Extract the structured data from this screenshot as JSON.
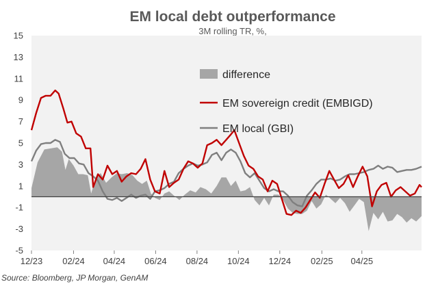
{
  "chart_data": {
    "type": "line",
    "title": "EM local debt outperformance",
    "subtitle": "3M rolling TR, %,",
    "source": "Source: Bloomberg, JP Morgan, GenAM",
    "ylim": [
      -5,
      15
    ],
    "yticks": [
      -5,
      -3,
      -1,
      1,
      3,
      5,
      7,
      9,
      11,
      13,
      15
    ],
    "xlim": [
      "2023-12-01",
      "2025-06-28"
    ],
    "xticks": [
      {
        "date": "2023-12-01",
        "label": "12/23"
      },
      {
        "date": "2024-02-01",
        "label": "02/24"
      },
      {
        "date": "2024-04-01",
        "label": "04/24"
      },
      {
        "date": "2024-06-01",
        "label": "06/24"
      },
      {
        "date": "2024-08-01",
        "label": "08/24"
      },
      {
        "date": "2024-10-01",
        "label": "10/24"
      },
      {
        "date": "2024-12-01",
        "label": "12/24"
      },
      {
        "date": "2025-02-01",
        "label": "02/25"
      },
      {
        "date": "2025-04-01",
        "label": "04/25"
      }
    ],
    "plot_background": "#f2f2f2",
    "grid": false,
    "legend_position": "center",
    "series": [
      {
        "name": "difference",
        "kind": "area",
        "color": "#a6a6a6",
        "points": [
          [
            "2023-12-01",
            0.8
          ],
          [
            "2023-12-10",
            3.2
          ],
          [
            "2023-12-20",
            4.4
          ],
          [
            "2023-12-30",
            4.5
          ],
          [
            "2024-01-08",
            4.6
          ],
          [
            "2024-01-15",
            4.2
          ],
          [
            "2024-01-20",
            2.5
          ],
          [
            "2024-01-25",
            3.5
          ],
          [
            "2024-02-01",
            2.9
          ],
          [
            "2024-02-08",
            2.1
          ],
          [
            "2024-02-15",
            2.1
          ],
          [
            "2024-02-22",
            2.0
          ],
          [
            "2024-02-27",
            0.3
          ],
          [
            "2024-03-05",
            1.8
          ],
          [
            "2024-03-12",
            2.2
          ],
          [
            "2024-03-20",
            1.3
          ],
          [
            "2024-03-28",
            1.8
          ],
          [
            "2024-04-05",
            2.2
          ],
          [
            "2024-04-12",
            2.1
          ],
          [
            "2024-04-20",
            2.2
          ],
          [
            "2024-04-28",
            2.0
          ],
          [
            "2024-05-05",
            1.5
          ],
          [
            "2024-05-12",
            1.2
          ],
          [
            "2024-05-19",
            1.5
          ],
          [
            "2024-05-25",
            0.3
          ],
          [
            "2024-05-31",
            -0.1
          ],
          [
            "2024-06-07",
            -0.3
          ],
          [
            "2024-06-14",
            0.3
          ],
          [
            "2024-06-21",
            0.5
          ],
          [
            "2024-06-28",
            0.1
          ],
          [
            "2024-07-06",
            -0.3
          ],
          [
            "2024-07-14",
            0.2
          ],
          [
            "2024-07-22",
            0.6
          ],
          [
            "2024-07-30",
            0.4
          ],
          [
            "2024-08-06",
            0.9
          ],
          [
            "2024-08-14",
            0.7
          ],
          [
            "2024-08-22",
            0.3
          ],
          [
            "2024-08-30",
            1.0
          ],
          [
            "2024-09-06",
            1.8
          ],
          [
            "2024-09-13",
            1.8
          ],
          [
            "2024-09-20",
            1.0
          ],
          [
            "2024-09-27",
            1.5
          ],
          [
            "2024-10-04",
            0.5
          ],
          [
            "2024-10-11",
            0.6
          ],
          [
            "2024-10-18",
            0.9
          ],
          [
            "2024-10-25",
            -0.3
          ],
          [
            "2024-11-01",
            -0.8
          ],
          [
            "2024-11-08",
            -0.1
          ],
          [
            "2024-11-15",
            -0.8
          ],
          [
            "2024-11-22",
            0.2
          ],
          [
            "2024-11-29",
            0.2
          ],
          [
            "2024-12-06",
            -0.3
          ],
          [
            "2024-12-13",
            -1.1
          ],
          [
            "2024-12-20",
            -1.5
          ],
          [
            "2024-12-27",
            -1.6
          ],
          [
            "2025-01-03",
            -1.6
          ],
          [
            "2025-01-10",
            -1.3
          ],
          [
            "2025-01-17",
            -0.4
          ],
          [
            "2025-01-24",
            -1.1
          ],
          [
            "2025-01-31",
            -0.7
          ],
          [
            "2025-02-07",
            0.2
          ],
          [
            "2025-02-14",
            -0.2
          ],
          [
            "2025-02-21",
            -0.6
          ],
          [
            "2025-02-28",
            -0.1
          ],
          [
            "2025-03-07",
            -0.6
          ],
          [
            "2025-03-14",
            -1.4
          ],
          [
            "2025-03-21",
            -0.8
          ],
          [
            "2025-03-28",
            -0.2
          ],
          [
            "2025-04-04",
            -0.5
          ],
          [
            "2025-04-11",
            -3.2
          ],
          [
            "2025-04-18",
            -1.5
          ],
          [
            "2025-04-25",
            -2.1
          ],
          [
            "2025-05-02",
            -1.4
          ],
          [
            "2025-05-09",
            -2.3
          ],
          [
            "2025-05-16",
            -2.2
          ],
          [
            "2025-05-23",
            -1.6
          ],
          [
            "2025-05-30",
            -1.9
          ],
          [
            "2025-06-06",
            -2.4
          ],
          [
            "2025-06-13",
            -2.0
          ],
          [
            "2025-06-20",
            -2.3
          ],
          [
            "2025-06-28",
            -1.8
          ]
        ]
      },
      {
        "name": "EM sovereign credit (EMBIGD)",
        "kind": "line",
        "color": "#c00000",
        "points": [
          [
            "2023-12-01",
            6.2
          ],
          [
            "2023-12-08",
            7.8
          ],
          [
            "2023-12-15",
            9.2
          ],
          [
            "2023-12-22",
            9.4
          ],
          [
            "2023-12-29",
            9.4
          ],
          [
            "2024-01-05",
            9.9
          ],
          [
            "2024-01-10",
            9.6
          ],
          [
            "2024-01-17",
            8.2
          ],
          [
            "2024-01-23",
            6.9
          ],
          [
            "2024-01-29",
            7.0
          ],
          [
            "2024-02-05",
            5.9
          ],
          [
            "2024-02-12",
            5.6
          ],
          [
            "2024-02-19",
            4.5
          ],
          [
            "2024-02-26",
            4.5
          ],
          [
            "2024-03-01",
            0.9
          ],
          [
            "2024-03-08",
            2.1
          ],
          [
            "2024-03-15",
            1.6
          ],
          [
            "2024-03-22",
            2.9
          ],
          [
            "2024-03-29",
            2.1
          ],
          [
            "2024-04-05",
            2.4
          ],
          [
            "2024-04-12",
            1.4
          ],
          [
            "2024-04-19",
            1.9
          ],
          [
            "2024-04-26",
            2.2
          ],
          [
            "2024-05-03",
            2.1
          ],
          [
            "2024-05-10",
            2.6
          ],
          [
            "2024-05-17",
            3.5
          ],
          [
            "2024-05-24",
            1.6
          ],
          [
            "2024-05-31",
            0.5
          ],
          [
            "2024-06-07",
            0.3
          ],
          [
            "2024-06-14",
            2.4
          ],
          [
            "2024-06-21",
            0.9
          ],
          [
            "2024-06-28",
            1.3
          ],
          [
            "2024-07-05",
            1.6
          ],
          [
            "2024-07-12",
            2.6
          ],
          [
            "2024-07-19",
            3.3
          ],
          [
            "2024-07-26",
            3.1
          ],
          [
            "2024-08-02",
            2.7
          ],
          [
            "2024-08-09",
            3.1
          ],
          [
            "2024-08-16",
            4.8
          ],
          [
            "2024-08-23",
            5.0
          ],
          [
            "2024-08-30",
            5.3
          ],
          [
            "2024-09-06",
            4.8
          ],
          [
            "2024-09-13",
            5.3
          ],
          [
            "2024-09-20",
            5.8
          ],
          [
            "2024-09-25",
            6.2
          ],
          [
            "2024-10-02",
            5.0
          ],
          [
            "2024-10-09",
            3.8
          ],
          [
            "2024-10-16",
            2.9
          ],
          [
            "2024-10-23",
            2.6
          ],
          [
            "2024-10-30",
            1.9
          ],
          [
            "2024-11-06",
            1.6
          ],
          [
            "2024-11-13",
            0.5
          ],
          [
            "2024-11-20",
            1.5
          ],
          [
            "2024-11-27",
            1.2
          ],
          [
            "2024-12-04",
            -0.2
          ],
          [
            "2024-12-11",
            -1.6
          ],
          [
            "2024-12-18",
            -1.7
          ],
          [
            "2024-12-25",
            -1.3
          ],
          [
            "2025-01-01",
            -1.5
          ],
          [
            "2025-01-08",
            -1.0
          ],
          [
            "2025-01-15",
            -0.3
          ],
          [
            "2025-01-22",
            0.4
          ],
          [
            "2025-01-29",
            -0.1
          ],
          [
            "2025-02-05",
            1.2
          ],
          [
            "2025-02-12",
            2.4
          ],
          [
            "2025-02-19",
            1.6
          ],
          [
            "2025-02-26",
            0.8
          ],
          [
            "2025-03-05",
            1.2
          ],
          [
            "2025-03-12",
            2.0
          ],
          [
            "2025-03-19",
            0.9
          ],
          [
            "2025-03-26",
            1.9
          ],
          [
            "2025-04-02",
            2.8
          ],
          [
            "2025-04-09",
            1.9
          ],
          [
            "2025-04-16",
            -0.9
          ],
          [
            "2025-04-23",
            0.5
          ],
          [
            "2025-04-30",
            1.1
          ],
          [
            "2025-05-07",
            1.3
          ],
          [
            "2025-05-14",
            0.0
          ],
          [
            "2025-05-21",
            0.6
          ],
          [
            "2025-05-28",
            0.9
          ],
          [
            "2025-06-04",
            0.5
          ],
          [
            "2025-06-11",
            0.1
          ],
          [
            "2025-06-18",
            0.3
          ],
          [
            "2025-06-25",
            1.1
          ],
          [
            "2025-06-28",
            0.9
          ]
        ]
      },
      {
        "name": "EM local (GBI)",
        "kind": "line",
        "color": "#7f7f7f",
        "points": [
          [
            "2023-12-01",
            3.3
          ],
          [
            "2023-12-08",
            4.3
          ],
          [
            "2023-12-15",
            4.9
          ],
          [
            "2023-12-22",
            5.0
          ],
          [
            "2023-12-29",
            5.0
          ],
          [
            "2024-01-05",
            5.3
          ],
          [
            "2024-01-12",
            5.1
          ],
          [
            "2024-01-19",
            4.0
          ],
          [
            "2024-01-26",
            3.6
          ],
          [
            "2024-02-02",
            3.6
          ],
          [
            "2024-02-09",
            3.1
          ],
          [
            "2024-02-16",
            3.0
          ],
          [
            "2024-02-23",
            2.2
          ],
          [
            "2024-03-01",
            1.9
          ],
          [
            "2024-03-08",
            1.5
          ],
          [
            "2024-03-15",
            0.5
          ],
          [
            "2024-03-22",
            -0.2
          ],
          [
            "2024-03-29",
            -0.3
          ],
          [
            "2024-04-05",
            -0.1
          ],
          [
            "2024-04-12",
            -0.4
          ],
          [
            "2024-04-19",
            -0.1
          ],
          [
            "2024-04-26",
            0.2
          ],
          [
            "2024-05-03",
            -0.1
          ],
          [
            "2024-05-10",
            0.1
          ],
          [
            "2024-05-17",
            0.2
          ],
          [
            "2024-05-24",
            -0.2
          ],
          [
            "2024-05-31",
            0.5
          ],
          [
            "2024-06-07",
            0.6
          ],
          [
            "2024-06-14",
            0.8
          ],
          [
            "2024-06-21",
            1.2
          ],
          [
            "2024-06-28",
            1.4
          ],
          [
            "2024-07-05",
            2.2
          ],
          [
            "2024-07-12",
            2.6
          ],
          [
            "2024-07-19",
            2.9
          ],
          [
            "2024-07-26",
            3.1
          ],
          [
            "2024-08-02",
            2.9
          ],
          [
            "2024-08-09",
            3.0
          ],
          [
            "2024-08-16",
            3.2
          ],
          [
            "2024-08-23",
            3.9
          ],
          [
            "2024-08-30",
            4.1
          ],
          [
            "2024-09-06",
            3.4
          ],
          [
            "2024-09-13",
            4.1
          ],
          [
            "2024-09-20",
            4.4
          ],
          [
            "2024-09-27",
            4.1
          ],
          [
            "2024-10-04",
            3.3
          ],
          [
            "2024-10-11",
            2.2
          ],
          [
            "2024-10-18",
            1.8
          ],
          [
            "2024-10-25",
            2.2
          ],
          [
            "2024-11-01",
            1.5
          ],
          [
            "2024-11-08",
            0.8
          ],
          [
            "2024-11-15",
            0.5
          ],
          [
            "2024-11-22",
            0.7
          ],
          [
            "2024-11-29",
            0.5
          ],
          [
            "2024-12-06",
            0.5
          ],
          [
            "2024-12-13",
            0.1
          ],
          [
            "2024-12-20",
            -0.5
          ],
          [
            "2024-12-27",
            -0.8
          ],
          [
            "2025-01-03",
            -0.9
          ],
          [
            "2025-01-10",
            0.1
          ],
          [
            "2025-01-17",
            0.6
          ],
          [
            "2025-01-24",
            1.2
          ],
          [
            "2025-01-31",
            1.6
          ],
          [
            "2025-02-07",
            1.6
          ],
          [
            "2025-02-14",
            1.7
          ],
          [
            "2025-02-21",
            1.5
          ],
          [
            "2025-02-28",
            1.6
          ],
          [
            "2025-03-07",
            1.9
          ],
          [
            "2025-03-14",
            2.1
          ],
          [
            "2025-03-21",
            2.1
          ],
          [
            "2025-03-28",
            2.2
          ],
          [
            "2025-04-04",
            2.3
          ],
          [
            "2025-04-11",
            2.5
          ],
          [
            "2025-04-18",
            2.6
          ],
          [
            "2025-04-25",
            2.9
          ],
          [
            "2025-05-02",
            2.6
          ],
          [
            "2025-05-09",
            2.8
          ],
          [
            "2025-05-16",
            2.7
          ],
          [
            "2025-05-23",
            2.3
          ],
          [
            "2025-05-30",
            2.4
          ],
          [
            "2025-06-06",
            2.5
          ],
          [
            "2025-06-13",
            2.5
          ],
          [
            "2025-06-20",
            2.6
          ],
          [
            "2025-06-28",
            2.8
          ]
        ]
      }
    ]
  }
}
